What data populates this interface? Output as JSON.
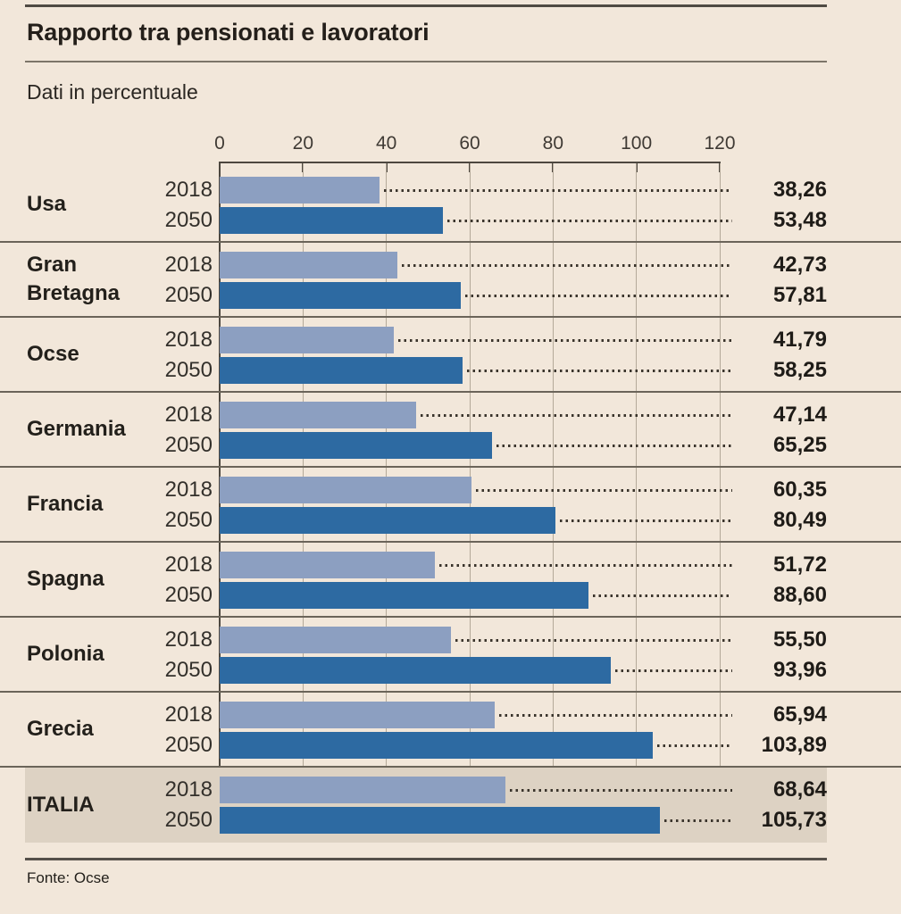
{
  "header": {
    "title": "Rapporto tra pensionati e lavoratori",
    "subtitle": "Dati in percentuale"
  },
  "footer": {
    "source": "Fonte: Ocse"
  },
  "chart_data": {
    "type": "bar",
    "orientation": "horizontal",
    "title": "Rapporto tra pensionati e lavoratori",
    "subtitle": "Dati in percentuale",
    "source": "Fonte: Ocse",
    "unit": "percentuale",
    "xlim": [
      0,
      120
    ],
    "x_ticks": [
      "0",
      "20",
      "40",
      "60",
      "80",
      "100",
      "120"
    ],
    "grid": true,
    "series": [
      "2018",
      "2050"
    ],
    "colors": {
      "series_2018": "#8c9fc1",
      "series_2050": "#2d6aa2",
      "background": "#f2e7da",
      "highlight_band": "#ddd2c3"
    },
    "rows": [
      {
        "country": "Usa",
        "values": [
          38.26,
          53.48
        ],
        "labels": [
          "38,26",
          "53,48"
        ],
        "highlight": false
      },
      {
        "country": "Gran Bretagna",
        "values": [
          42.73,
          57.81
        ],
        "labels": [
          "42,73",
          "57,81"
        ],
        "highlight": false
      },
      {
        "country": "Ocse",
        "values": [
          41.79,
          58.25
        ],
        "labels": [
          "41,79",
          "58,25"
        ],
        "highlight": false
      },
      {
        "country": "Germania",
        "values": [
          47.14,
          65.25
        ],
        "labels": [
          "47,14",
          "65,25"
        ],
        "highlight": false
      },
      {
        "country": "Francia",
        "values": [
          60.35,
          80.49
        ],
        "labels": [
          "60,35",
          "80,49"
        ],
        "highlight": false
      },
      {
        "country": "Spagna",
        "values": [
          51.72,
          88.6
        ],
        "labels": [
          "51,72",
          "88,60"
        ],
        "highlight": false
      },
      {
        "country": "Polonia",
        "values": [
          55.5,
          93.96
        ],
        "labels": [
          "55,50",
          "93,96"
        ],
        "highlight": false
      },
      {
        "country": "Grecia",
        "values": [
          65.94,
          103.89
        ],
        "labels": [
          "65,94",
          "103,89"
        ],
        "highlight": false
      },
      {
        "country": "ITALIA",
        "values": [
          68.64,
          105.73
        ],
        "labels": [
          "68,64",
          "105,73"
        ],
        "highlight": true
      }
    ]
  }
}
